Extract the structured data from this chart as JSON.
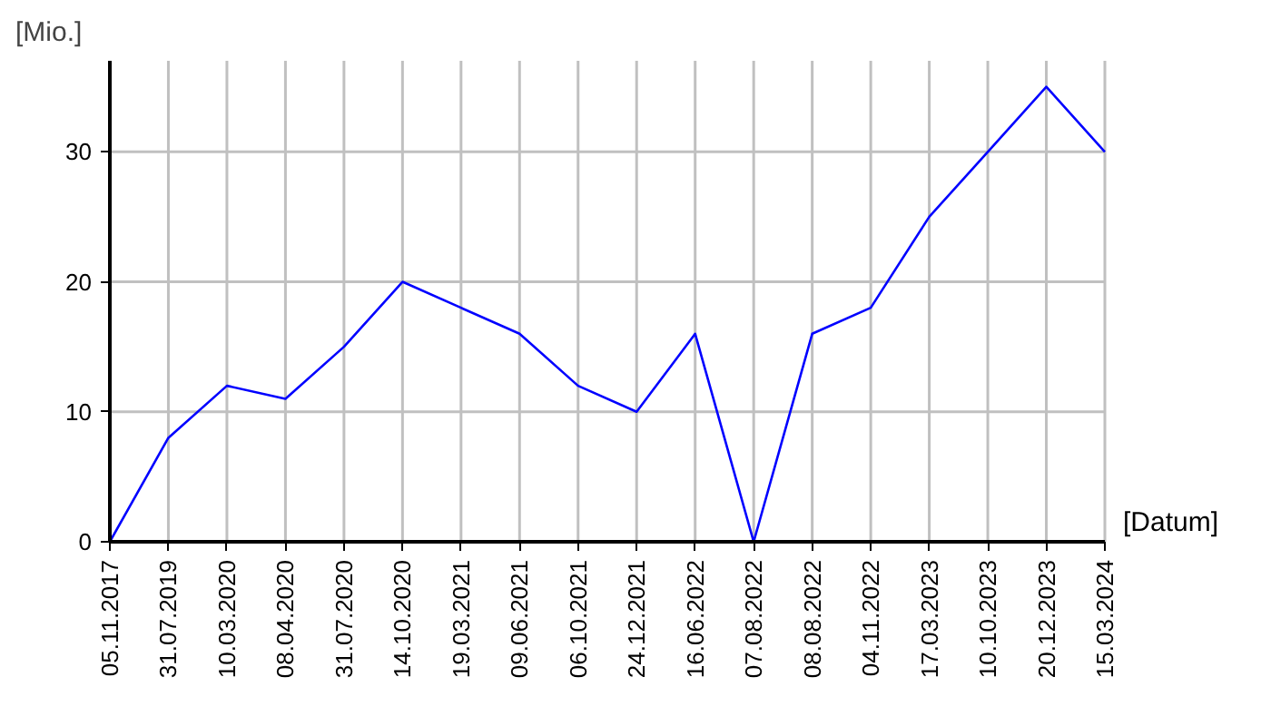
{
  "chart_data": {
    "type": "line",
    "xlabel": "[Datum]",
    "ylabel": "[Mio.]",
    "categories": [
      "05.11.2017",
      "31.07.2019",
      "10.03.2020",
      "08.04.2020",
      "31.07.2020",
      "14.10.2020",
      "19.03.2021",
      "09.06.2021",
      "06.10.2021",
      "24.12.2021",
      "16.06.2022",
      "07.08.2022",
      "08.08.2022",
      "04.11.2022",
      "17.03.2023",
      "10.10.2023",
      "20.12.2023",
      "15.03.2024"
    ],
    "series": [
      {
        "color": "#0000ff",
        "values": [
          0,
          8,
          12,
          11,
          15,
          20,
          18,
          16,
          12,
          10,
          16,
          0,
          16,
          18,
          25,
          30,
          35,
          30
        ]
      }
    ],
    "ylim": [
      0,
      37
    ],
    "yticks": [
      0,
      10,
      20,
      30
    ],
    "grid": true,
    "marker": "none",
    "line_style": "solid"
  }
}
